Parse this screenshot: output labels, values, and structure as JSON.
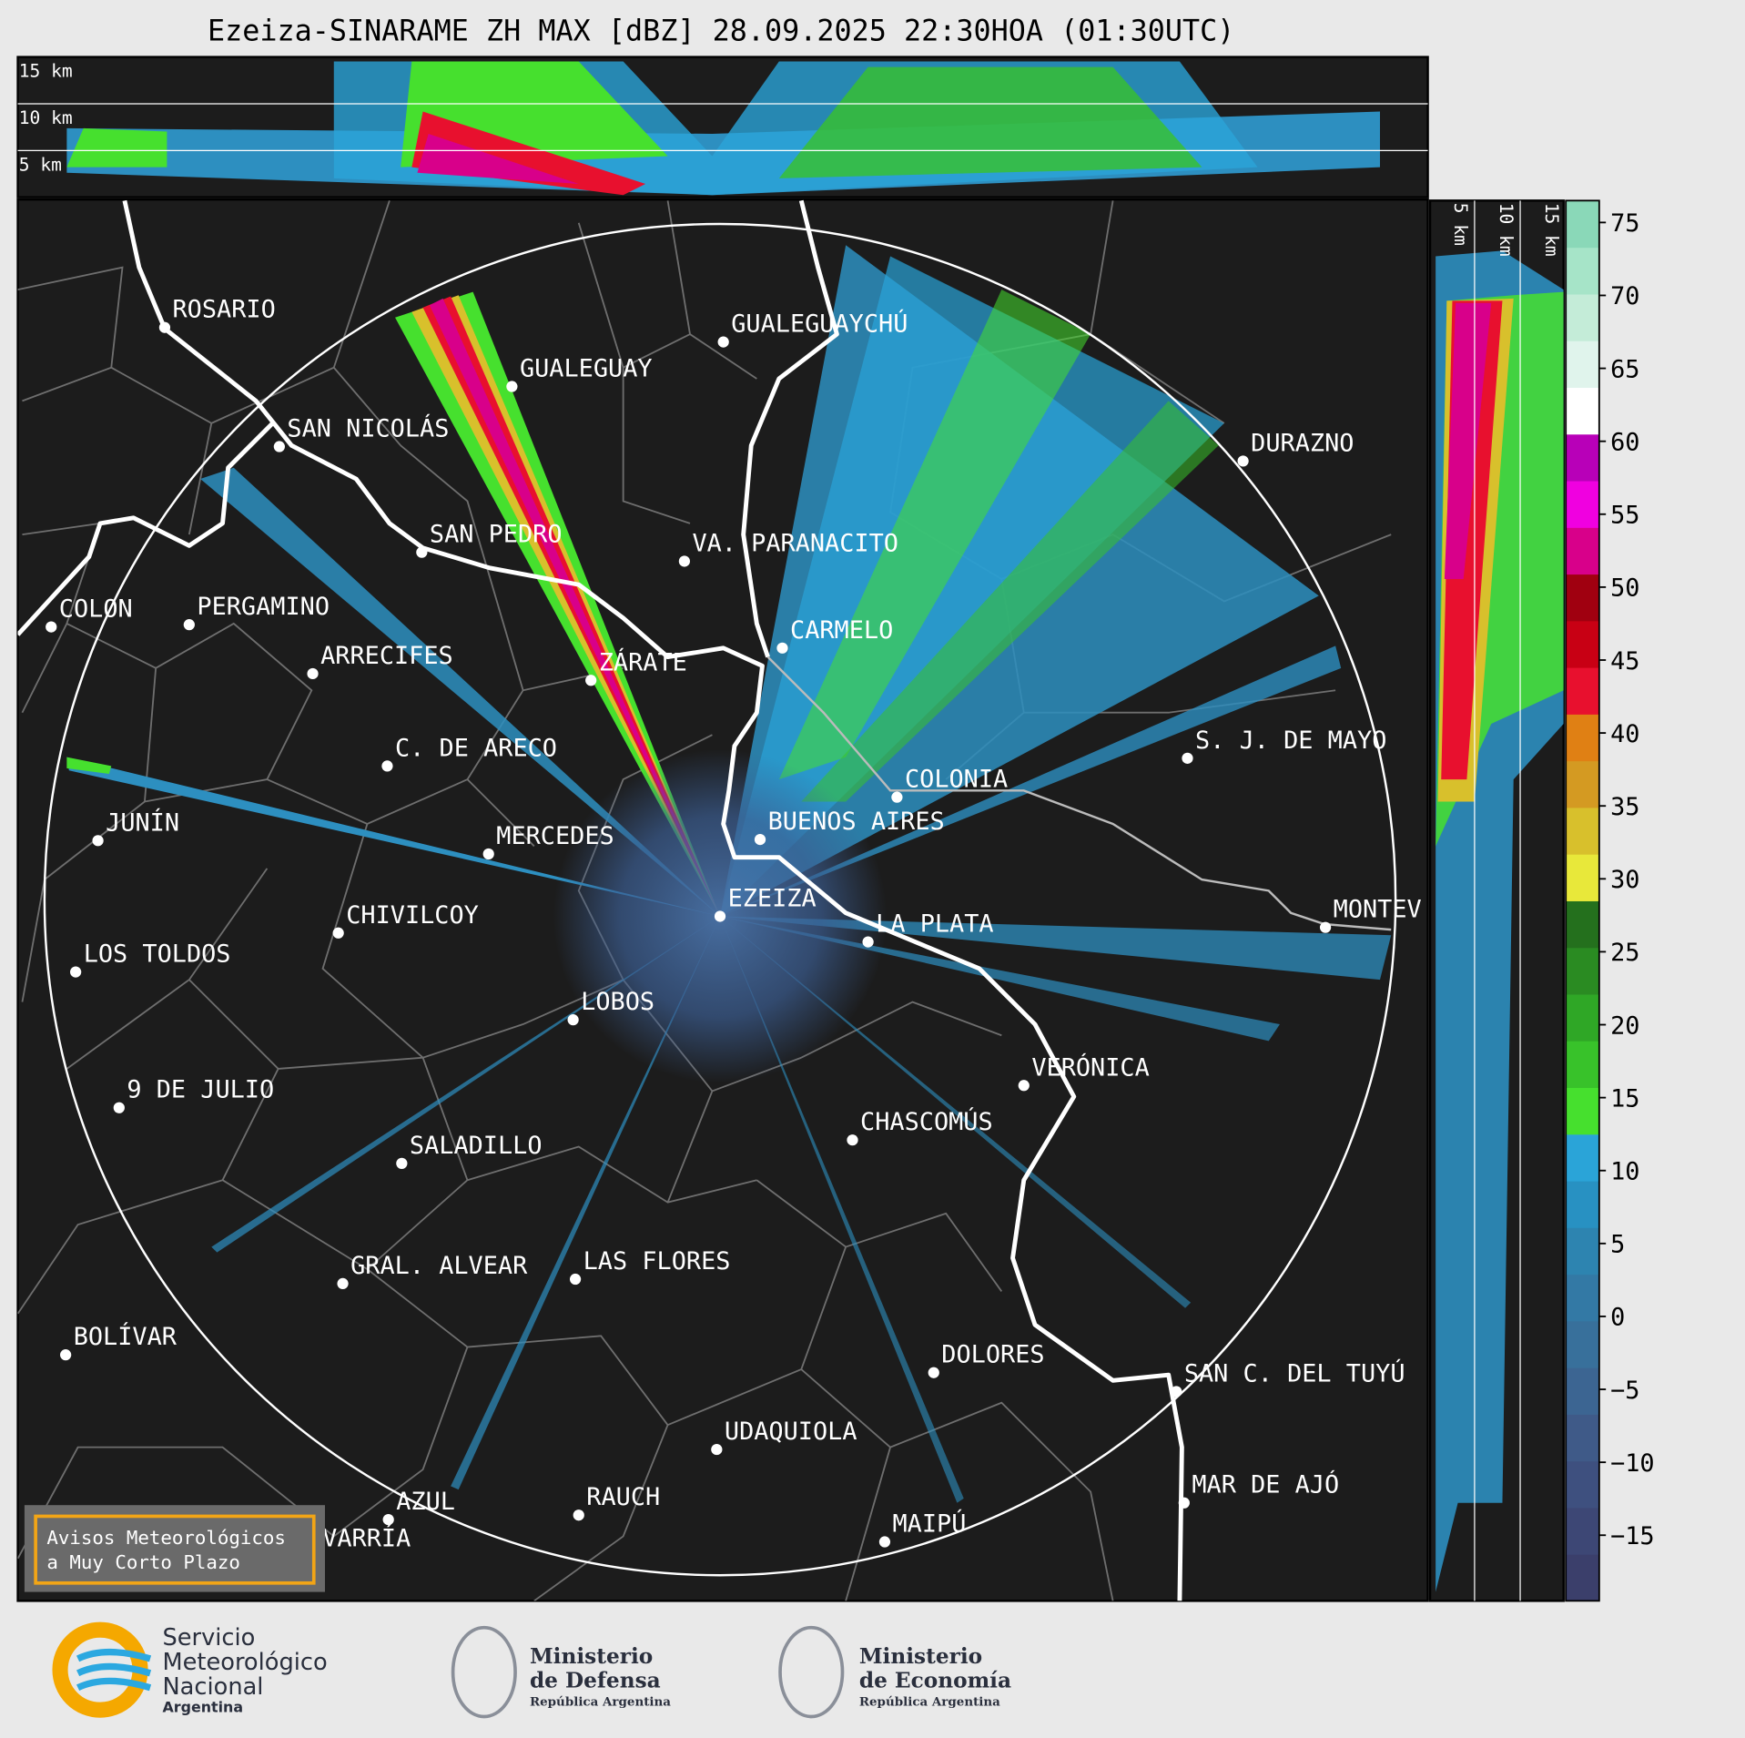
{
  "title": "Ezeiza-SINARAME ZH MAX [dBZ] 28.09.2025 22:30HOA (01:30UTC)",
  "height_labels": [
    "15 km",
    "10 km",
    "5 km"
  ],
  "side_height_labels": [
    "5 km",
    "10 km",
    "15 km"
  ],
  "cities": [
    "ROSARIO",
    "GUALEGUAYCHÚ",
    "GUALEGUAY",
    "SAN NICOLÁS",
    "DURAZNO",
    "SAN PEDRO",
    "VA. PARANACITO",
    "COLON",
    "PERGAMINO",
    "CARMELO",
    "ARRECIFES",
    "ZÁRATE",
    "S. J. DE MAYO",
    "C. DE ARECO",
    "COLONIA",
    "BUENOS AIRES",
    "JUNÍN",
    "MERCEDES",
    "EZEIZA",
    "MONTEV",
    "CHIVILCOY",
    "LA PLATA",
    "LOS TOLDOS",
    "LOBOS",
    "VERÓNICA",
    "9 DE JULIO",
    "CHASCOMÚS",
    "SALADILLO",
    "GRAL. ALVEAR",
    "LAS FLORES",
    "BOLÍVAR",
    "DOLORES",
    "SAN C. DEL TUYÚ",
    "UDAQUIOLA",
    "MAR DE AJÓ",
    "RAUCH",
    "AZUL",
    "OLAVARRÍA",
    "MAIPÚ"
  ],
  "colorbar": {
    "lim": [
      -19.5,
      76.5
    ],
    "ticks": [
      {
        "value": -15,
        "label": "−15"
      },
      {
        "value": -10,
        "label": "−10"
      },
      {
        "value": -5,
        "label": "−5"
      },
      0,
      5,
      10,
      15,
      20,
      25,
      30,
      35,
      40,
      45,
      50,
      55,
      60,
      65,
      70,
      75
    ],
    "colors": [
      "#3b3f6b",
      "#3d4775",
      "#3e507f",
      "#3f5a88",
      "#3c6592",
      "#38709b",
      "#3379a5",
      "#2d84b0",
      "#2891c2",
      "#2aa4d8",
      "#46e02e",
      "#38c22a",
      "#2fa726",
      "#2a8b22",
      "#24701d",
      "#e8e83a",
      "#d8c02c",
      "#d49a22",
      "#e08014",
      "#e8102e",
      "#c80014",
      "#a00010",
      "#d8008a",
      "#f000e0",
      "#b800b8",
      "#ffffff",
      "#e0f4ec",
      "#c4ecd8",
      "#a6e4c8",
      "#8ad8b8"
    ]
  },
  "notice": [
    "Avisos Meteorológicos",
    "a Muy Corto Plazo"
  ],
  "logos": {
    "smn": [
      "Servicio",
      "Meteorológico",
      "Nacional",
      "Argentina"
    ],
    "defensa": [
      "Ministerio",
      "de Defensa",
      "República Argentina"
    ],
    "economia": [
      "Ministerio",
      "de Economía",
      "República Argentina"
    ]
  }
}
